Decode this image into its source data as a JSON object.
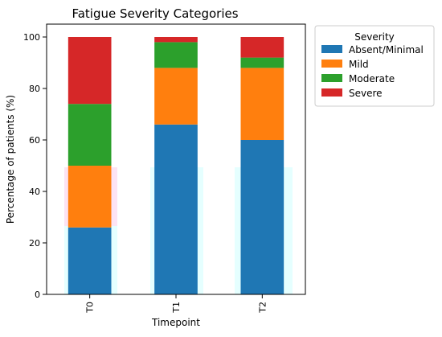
{
  "chart_data": {
    "type": "bar",
    "stacked": true,
    "title": "Fatigue Severity Categories",
    "xlabel": "Timepoint",
    "ylabel": "Percentage of patients (%)",
    "categories": [
      "T0",
      "T1",
      "T2"
    ],
    "ylim": [
      0,
      105
    ],
    "yticks": [
      0,
      20,
      40,
      60,
      80,
      100
    ],
    "grid": false,
    "legend": {
      "title": "Severity",
      "placement": "outside-top-right"
    },
    "series": [
      {
        "name": "Absent/Minimal",
        "color": "#1f77b4",
        "values": [
          26,
          66,
          60
        ]
      },
      {
        "name": "Mild",
        "color": "#ff7f0e",
        "values": [
          24,
          22,
          28
        ]
      },
      {
        "name": "Moderate",
        "color": "#2ca02c",
        "values": [
          24,
          10,
          4
        ]
      },
      {
        "name": "Severe",
        "color": "#d62728",
        "values": [
          26,
          2,
          8
        ]
      }
    ]
  }
}
